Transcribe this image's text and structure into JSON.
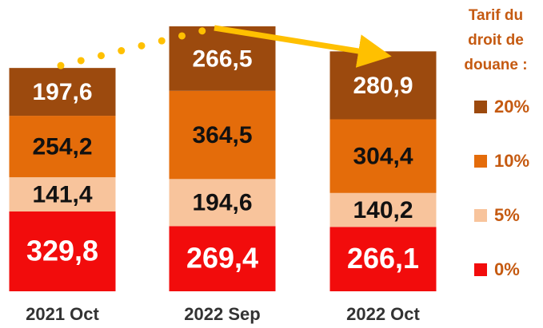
{
  "chart_data": {
    "type": "stacked_bar",
    "categories": [
      "2021 Oct",
      "2022 Sep",
      "2022 Oct"
    ],
    "legend_title": [
      "Tarif du",
      "droit de",
      "douane :"
    ],
    "series": [
      {
        "name": "0%",
        "color": "#f20c0c",
        "text_color": "#ffffff",
        "values": [
          329.8,
          269.4,
          266.1
        ],
        "value_labels": [
          "329,8",
          "269,4",
          "266,1"
        ]
      },
      {
        "name": "5%",
        "color": "#f8c49c",
        "text_color": "#111111",
        "values": [
          141.4,
          194.6,
          140.2
        ],
        "value_labels": [
          "141,4",
          "194,6",
          "140,2"
        ]
      },
      {
        "name": "10%",
        "color": "#e46c0a",
        "text_color": "#111111",
        "values": [
          254.2,
          364.5,
          304.4
        ],
        "value_labels": [
          "254,2",
          "364,5",
          "304,4"
        ]
      },
      {
        "name": "20%",
        "color": "#9c4a0e",
        "text_color": "#ffffff",
        "values": [
          197.6,
          266.5,
          280.9
        ],
        "value_labels": [
          "197,6",
          "266,5",
          "280,9"
        ]
      }
    ]
  }
}
